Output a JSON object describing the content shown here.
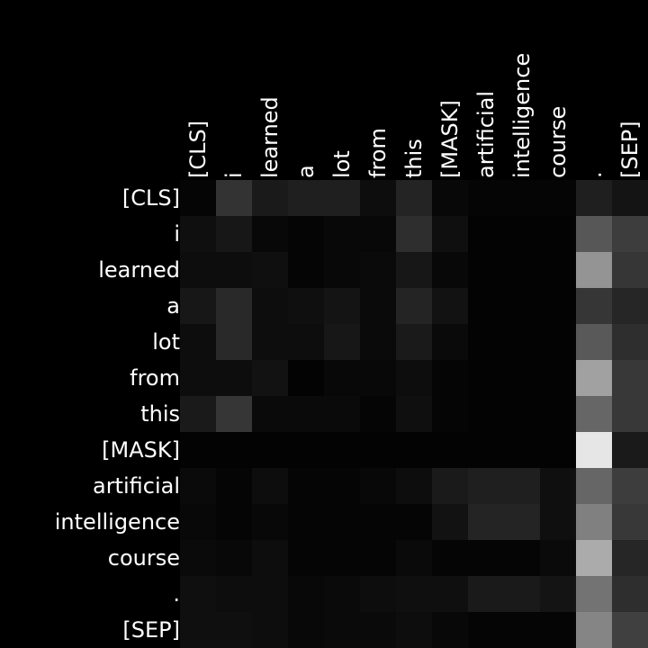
{
  "chart_data": {
    "type": "heatmap",
    "title": "",
    "xlabel": "",
    "ylabel": "",
    "x_tokens": [
      "[CLS]",
      "i",
      "learned",
      "a",
      "lot",
      "from",
      "this",
      "[MASK]",
      "artificial",
      "intelligence",
      "course",
      ".",
      "[SEP]"
    ],
    "y_tokens": [
      "[CLS]",
      "i",
      "learned",
      "a",
      "lot",
      "from",
      "this",
      "[MASK]",
      "artificial",
      "intelligence",
      "course",
      ".",
      "[SEP]"
    ],
    "value_range": [
      0,
      1
    ],
    "colormap": "black-to-white grayscale",
    "grid": false,
    "values": [
      [
        0.02,
        0.2,
        0.1,
        0.12,
        0.12,
        0.05,
        0.14,
        0.03,
        0.02,
        0.02,
        0.02,
        0.12,
        0.08
      ],
      [
        0.06,
        0.09,
        0.03,
        0.02,
        0.03,
        0.03,
        0.18,
        0.06,
        0.01,
        0.01,
        0.01,
        0.34,
        0.24
      ],
      [
        0.05,
        0.05,
        0.06,
        0.02,
        0.03,
        0.04,
        0.09,
        0.03,
        0.01,
        0.01,
        0.01,
        0.58,
        0.21
      ],
      [
        0.09,
        0.16,
        0.05,
        0.06,
        0.08,
        0.04,
        0.14,
        0.07,
        0.01,
        0.01,
        0.01,
        0.21,
        0.15
      ],
      [
        0.05,
        0.16,
        0.05,
        0.05,
        0.09,
        0.04,
        0.1,
        0.04,
        0.01,
        0.01,
        0.01,
        0.35,
        0.18
      ],
      [
        0.05,
        0.05,
        0.07,
        0.01,
        0.03,
        0.03,
        0.05,
        0.02,
        0.01,
        0.01,
        0.01,
        0.63,
        0.22
      ],
      [
        0.1,
        0.21,
        0.04,
        0.04,
        0.04,
        0.02,
        0.06,
        0.02,
        0.01,
        0.01,
        0.01,
        0.4,
        0.22
      ],
      [
        0.01,
        0.01,
        0.01,
        0.01,
        0.01,
        0.01,
        0.01,
        0.01,
        0.01,
        0.01,
        0.01,
        0.9,
        0.1
      ],
      [
        0.04,
        0.02,
        0.05,
        0.02,
        0.02,
        0.03,
        0.05,
        0.1,
        0.12,
        0.12,
        0.06,
        0.4,
        0.24
      ],
      [
        0.03,
        0.02,
        0.03,
        0.02,
        0.02,
        0.02,
        0.02,
        0.07,
        0.14,
        0.14,
        0.06,
        0.5,
        0.22
      ],
      [
        0.04,
        0.03,
        0.05,
        0.02,
        0.02,
        0.02,
        0.04,
        0.02,
        0.02,
        0.02,
        0.04,
        0.67,
        0.15
      ],
      [
        0.06,
        0.05,
        0.05,
        0.03,
        0.04,
        0.05,
        0.06,
        0.06,
        0.1,
        0.1,
        0.08,
        0.45,
        0.18
      ],
      [
        0.06,
        0.06,
        0.05,
        0.03,
        0.04,
        0.04,
        0.05,
        0.03,
        0.02,
        0.02,
        0.02,
        0.52,
        0.25
      ]
    ]
  }
}
